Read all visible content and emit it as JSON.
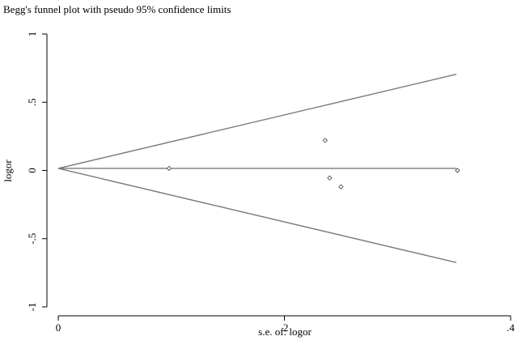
{
  "chart_data": {
    "type": "scatter",
    "title": "Begg's funnel plot with pseudo 95% confidence limits",
    "xlabel": "s.e. of: logor",
    "ylabel": "logor",
    "xlim": [
      0,
      0.4
    ],
    "ylim": [
      -1,
      1
    ],
    "x_ticks": [
      {
        "value": 0,
        "label": "0"
      },
      {
        "value": 0.2,
        "label": ".2"
      },
      {
        "value": 0.4,
        "label": ".4"
      }
    ],
    "y_ticks": [
      {
        "value": 1,
        "label": "1"
      },
      {
        "value": 0.5,
        "label": ".5"
      },
      {
        "value": 0,
        "label": "0"
      },
      {
        "value": -0.5,
        "label": "-.5"
      },
      {
        "value": -1,
        "label": "-1"
      }
    ],
    "grid": false,
    "pooled_estimate": 0.015,
    "funnel_limits": {
      "se_range": [
        0,
        0.352
      ],
      "upper_end": 0.705,
      "lower_end": -0.675
    },
    "points": [
      {
        "x": 0.098,
        "y": 0.015
      },
      {
        "x": 0.236,
        "y": 0.22
      },
      {
        "x": 0.24,
        "y": -0.055
      },
      {
        "x": 0.25,
        "y": -0.12
      },
      {
        "x": 0.353,
        "y": 0.0
      }
    ]
  }
}
